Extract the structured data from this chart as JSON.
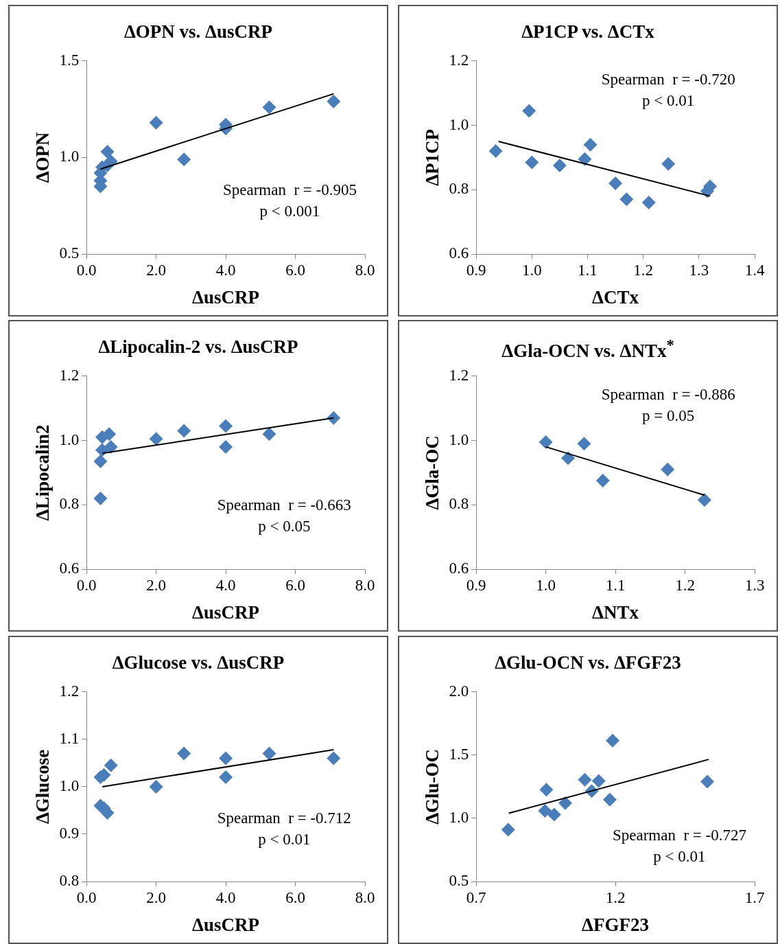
{
  "chart_data": [
    {
      "type": "scatter",
      "title": "ΔOPN vs. ΔusCRP",
      "xlabel": "ΔusCRP",
      "ylabel": "ΔOPN",
      "xlim": [
        0,
        8
      ],
      "xticks": [
        {
          "value": 0,
          "label": "0.0"
        },
        {
          "value": 2,
          "label": "2.0"
        },
        {
          "value": 4,
          "label": "4.0"
        },
        {
          "value": 6,
          "label": "6.0"
        },
        {
          "value": 8,
          "label": "8.0"
        }
      ],
      "ylim": [
        0.5,
        1.5
      ],
      "yticks": [
        {
          "value": 0.5,
          "label": "0.5"
        },
        {
          "value": 1,
          "label": "1.0"
        },
        {
          "value": 1.5,
          "label": "1.5"
        }
      ],
      "annotations": [
        "Spearman  r = -0.905",
        "p < 0.001"
      ],
      "series": [
        {
          "type": "scatter",
          "color": "#4a7ebb",
          "marker": "diamond",
          "x": [
            0.4,
            0.4,
            0.4,
            0.45,
            0.6,
            0.7,
            0.6,
            2.0,
            2.8,
            4.0,
            4.0,
            5.25,
            7.1
          ],
          "values": [
            0.85,
            0.88,
            0.92,
            0.95,
            1.03,
            0.98,
            0.96,
            1.18,
            0.99,
            1.15,
            1.17,
            1.26,
            1.29
          ]
        },
        {
          "type": "line",
          "color": "#000000",
          "x": [
            0.4,
            7.1
          ],
          "values": [
            0.94,
            1.33
          ]
        }
      ]
    },
    {
      "type": "scatter",
      "title": "ΔP1CP vs. ΔCTx",
      "xlabel": "ΔCTx",
      "ylabel": "ΔP1CP",
      "xlim": [
        0.9,
        1.4
      ],
      "xticks": [
        {
          "value": 0.9,
          "label": "0.9"
        },
        {
          "value": 1,
          "label": "1.0"
        },
        {
          "value": 1.1,
          "label": "1.1"
        },
        {
          "value": 1.2,
          "label": "1.2"
        },
        {
          "value": 1.3,
          "label": "1.3"
        },
        {
          "value": 1.4,
          "label": "1.4"
        }
      ],
      "ylim": [
        0.6,
        1.2
      ],
      "yticks": [
        {
          "value": 0.6,
          "label": "0.6"
        },
        {
          "value": 0.8,
          "label": "0.8"
        },
        {
          "value": 1,
          "label": "1.0"
        },
        {
          "value": 1.2,
          "label": "1.2"
        }
      ],
      "annotations": [
        "Spearman  r = -0.720",
        "p < 0.01"
      ],
      "series": [
        {
          "type": "scatter",
          "color": "#4a7ebb",
          "marker": "diamond",
          "x": [
            0.935,
            0.995,
            1.0,
            1.05,
            1.095,
            1.105,
            1.15,
            1.17,
            1.21,
            1.245,
            1.315,
            1.32
          ],
          "values": [
            0.92,
            1.045,
            0.885,
            0.875,
            0.895,
            0.94,
            0.82,
            0.77,
            0.76,
            0.88,
            0.795,
            0.81
          ]
        },
        {
          "type": "line",
          "color": "#000000",
          "x": [
            0.94,
            1.32
          ],
          "values": [
            0.95,
            0.78
          ]
        }
      ]
    },
    {
      "type": "scatter",
      "title": "ΔLipocalin-2 vs. ΔusCRP",
      "xlabel": "ΔusCRP",
      "ylabel": "ΔLipocalin2",
      "xlim": [
        0,
        8
      ],
      "xticks": [
        {
          "value": 0,
          "label": "0.0"
        },
        {
          "value": 2,
          "label": "2.0"
        },
        {
          "value": 4,
          "label": "4.0"
        },
        {
          "value": 6,
          "label": "6.0"
        },
        {
          "value": 8,
          "label": "8.0"
        }
      ],
      "ylim": [
        0.6,
        1.2
      ],
      "yticks": [
        {
          "value": 0.6,
          "label": "0.6"
        },
        {
          "value": 0.8,
          "label": "0.8"
        },
        {
          "value": 1,
          "label": "1.0"
        },
        {
          "value": 1.2,
          "label": "1.2"
        }
      ],
      "annotations": [
        "Spearman  r = -0.663",
        "p < 0.05"
      ],
      "series": [
        {
          "type": "scatter",
          "color": "#4a7ebb",
          "marker": "diamond",
          "x": [
            0.45,
            0.65,
            0.45,
            0.7,
            0.4,
            0.4,
            2.0,
            2.8,
            4.0,
            4.0,
            5.25,
            7.1
          ],
          "values": [
            1.01,
            1.02,
            0.97,
            0.98,
            0.935,
            0.82,
            1.005,
            1.03,
            1.045,
            0.98,
            1.02,
            1.07
          ]
        },
        {
          "type": "line",
          "color": "#000000",
          "x": [
            0.45,
            7.1
          ],
          "values": [
            0.96,
            1.07
          ]
        }
      ]
    },
    {
      "type": "scatter",
      "title": "ΔGla-OCN vs. ΔNTx$^{*}$",
      "xlabel": "ΔNTx",
      "ylabel": "ΔGla-OC",
      "xlim": [
        0.9,
        1.3
      ],
      "xticks": [
        {
          "value": 0.9,
          "label": "0.9"
        },
        {
          "value": 1,
          "label": "1.0"
        },
        {
          "value": 1.1,
          "label": "1.1"
        },
        {
          "value": 1.2,
          "label": "1.2"
        },
        {
          "value": 1.3,
          "label": "1.3"
        }
      ],
      "ylim": [
        0.6,
        1.2
      ],
      "yticks": [
        {
          "value": 0.6,
          "label": "0.6"
        },
        {
          "value": 0.8,
          "label": "0.8"
        },
        {
          "value": 1,
          "label": "1.0"
        },
        {
          "value": 1.2,
          "label": "1.2"
        }
      ],
      "annotations": [
        "Spearman  r = -0.886",
        "p = 0.05"
      ],
      "series": [
        {
          "type": "scatter",
          "color": "#4a7ebb",
          "marker": "diamond",
          "x": [
            1.0,
            1.032,
            1.055,
            1.082,
            1.175,
            1.228
          ],
          "values": [
            0.995,
            0.945,
            0.99,
            0.875,
            0.91,
            0.815
          ]
        },
        {
          "type": "line",
          "color": "#000000",
          "x": [
            1.0,
            1.228
          ],
          "values": [
            0.98,
            0.83
          ]
        }
      ]
    },
    {
      "type": "scatter",
      "title": "ΔGlucose vs. ΔusCRP",
      "xlabel": "ΔusCRP",
      "ylabel": "ΔGlucose",
      "xlim": [
        0,
        8
      ],
      "xticks": [
        {
          "value": 0,
          "label": "0.0"
        },
        {
          "value": 2,
          "label": "2.0"
        },
        {
          "value": 4,
          "label": "4.0"
        },
        {
          "value": 6,
          "label": "6.0"
        },
        {
          "value": 8,
          "label": "8.0"
        }
      ],
      "ylim": [
        0.8,
        1.2
      ],
      "yticks": [
        {
          "value": 0.8,
          "label": "0.8"
        },
        {
          "value": 0.9,
          "label": "0.9"
        },
        {
          "value": 1,
          "label": "1.0"
        },
        {
          "value": 1.1,
          "label": "1.1"
        },
        {
          "value": 1.2,
          "label": "1.2"
        }
      ],
      "annotations": [
        "Spearman  r = -0.712",
        "p < 0.01"
      ],
      "series": [
        {
          "type": "scatter",
          "color": "#4a7ebb",
          "marker": "diamond",
          "x": [
            0.4,
            0.5,
            0.7,
            0.4,
            0.6,
            0.5,
            2.0,
            2.8,
            4.0,
            4.0,
            5.25,
            7.1
          ],
          "values": [
            1.02,
            1.025,
            1.045,
            0.96,
            0.945,
            0.955,
            1.0,
            1.07,
            1.06,
            1.02,
            1.07,
            1.06
          ]
        },
        {
          "type": "line",
          "color": "#000000",
          "x": [
            0.45,
            7.1
          ],
          "values": [
            1.0,
            1.078
          ]
        }
      ]
    },
    {
      "type": "scatter",
      "title": "ΔGlu-OCN vs. ΔFGF23",
      "xlabel": "ΔFGF23",
      "ylabel": "ΔGlu-OC",
      "xlim": [
        0.7,
        1.7
      ],
      "xticks": [
        {
          "value": 0.7,
          "label": "0.7"
        },
        {
          "value": 1.2,
          "label": "1.2"
        },
        {
          "value": 1.7,
          "label": "1.7"
        }
      ],
      "ylim": [
        0.5,
        2.0
      ],
      "yticks": [
        {
          "value": 0.5,
          "label": "0.5"
        },
        {
          "value": 1,
          "label": "1.0"
        },
        {
          "value": 1.5,
          "label": "1.5"
        },
        {
          "value": 2,
          "label": "2.0"
        }
      ],
      "annotations": [
        "Spearman  r = -0.727",
        "p < 0.01"
      ],
      "series": [
        {
          "type": "scatter",
          "color": "#4a7ebb",
          "marker": "diamond",
          "x": [
            0.815,
            0.952,
            0.947,
            0.98,
            1.02,
            1.09,
            1.115,
            1.14,
            1.18,
            1.19,
            1.53
          ],
          "values": [
            0.91,
            1.226,
            1.06,
            1.03,
            1.12,
            1.305,
            1.216,
            1.295,
            1.147,
            1.615,
            1.29
          ]
        },
        {
          "type": "line",
          "color": "#000000",
          "x": [
            0.817,
            1.535
          ],
          "values": [
            1.04,
            1.466
          ]
        }
      ]
    }
  ]
}
